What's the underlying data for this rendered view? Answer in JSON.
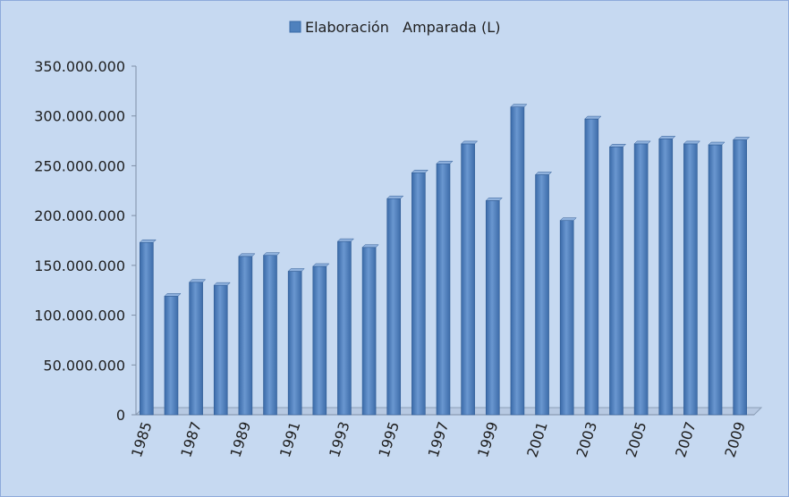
{
  "chart_data": {
    "type": "bar",
    "title": "",
    "xlabel": "",
    "ylabel": "",
    "legend": "top-center",
    "grid": false,
    "ylim": [
      0,
      350000000
    ],
    "yticks": [
      0,
      50000000,
      100000000,
      150000000,
      200000000,
      250000000,
      300000000,
      350000000
    ],
    "ytick_labels": [
      "0",
      "50.000.000",
      "100.000.000",
      "150.000.000",
      "200.000.000",
      "250.000.000",
      "300.000.000",
      "350.000.000"
    ],
    "categories": [
      "1985",
      "1986",
      "1987",
      "1988",
      "1989",
      "1990",
      "1991",
      "1992",
      "1993",
      "1994",
      "1995",
      "1996",
      "1997",
      "1998",
      "1999",
      "2000",
      "2001",
      "2002",
      "2003",
      "2004",
      "2005",
      "2006",
      "2007",
      "2008",
      "2009"
    ],
    "xtick_labels": [
      "1985",
      "1987",
      "1989",
      "1991",
      "1993",
      "1995",
      "1997",
      "1999",
      "2001",
      "2003",
      "2005",
      "2007",
      "2009"
    ],
    "series": [
      {
        "name": "Elaboración   Amparada (L)",
        "color": "#4f81bd",
        "values": [
          173000000,
          119000000,
          133000000,
          130000000,
          159000000,
          160000000,
          144000000,
          149000000,
          174000000,
          168000000,
          217000000,
          243000000,
          252000000,
          272000000,
          215000000,
          309000000,
          241000000,
          195000000,
          297000000,
          269000000,
          272000000,
          277000000,
          272000000,
          271000000,
          276000000
        ]
      }
    ]
  }
}
